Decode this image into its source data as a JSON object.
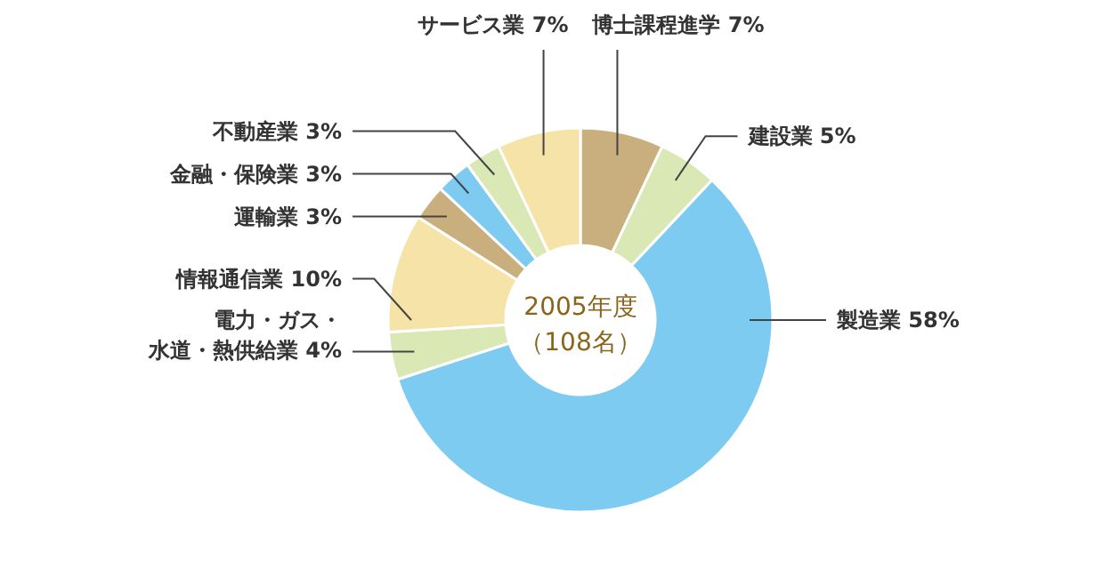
{
  "chart_data": {
    "type": "donut",
    "title": "2005年度",
    "subtitle": "（108名）",
    "categories": [
      "博士課程進学",
      "建設業",
      "製造業",
      "電力・ガス・水道・熱供給業",
      "情報通信業",
      "運輸業",
      "金融・保険業",
      "不動産業",
      "サービス業"
    ],
    "values": [
      7,
      5,
      58,
      4,
      10,
      3,
      3,
      3,
      7
    ],
    "value_labels": [
      "7%",
      "5%",
      "58%",
      "4%",
      "10%",
      "3%",
      "3%",
      "3%",
      "7%"
    ],
    "colors": [
      "#c9af7e",
      "#d9e8b5",
      "#7ecbf2",
      "#d9e8b5",
      "#f5e3a8",
      "#c9af7e",
      "#7ecbf2",
      "#d9e8b5",
      "#f5e3a8"
    ]
  }
}
